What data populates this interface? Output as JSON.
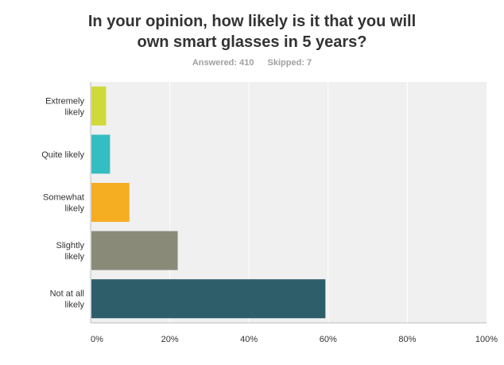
{
  "title_lines": [
    "In your opinion, how likely is it that you will",
    "own smart glasses in 5 years?"
  ],
  "stats": {
    "answered": "Answered: 410",
    "skipped": "Skipped: 7"
  },
  "colors": {
    "plot_bg": "#f0f0f0",
    "grid": "#ffffff",
    "axis": "#bdbdbd",
    "tick_text": "#333333"
  },
  "chart_data": {
    "type": "bar",
    "orientation": "horizontal",
    "categories": [
      [
        "Extremely",
        "likely"
      ],
      [
        "Quite likely"
      ],
      [
        "Somewhat",
        "likely"
      ],
      [
        "Slightly",
        "likely"
      ],
      [
        "Not at all",
        "likely"
      ]
    ],
    "values": [
      3.9,
      4.9,
      9.8,
      22.0,
      59.3
    ],
    "bar_colors": [
      "#d0d93a",
      "#34bdc2",
      "#f5ad22",
      "#8a8a78",
      "#2e5e6a"
    ],
    "xlim": [
      0,
      100
    ],
    "xticks": [
      0,
      20,
      40,
      60,
      80,
      100
    ],
    "xtick_labels": [
      "0%",
      "20%",
      "40%",
      "60%",
      "80%",
      "100%"
    ],
    "unit": "%",
    "grid": true
  }
}
